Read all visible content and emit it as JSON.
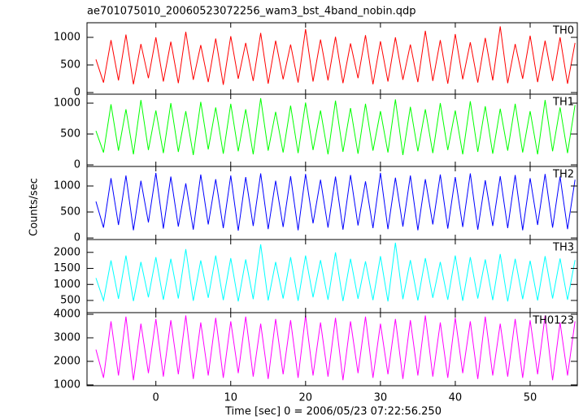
{
  "chart_data": {
    "type": "stacked-lines",
    "title": "ae701075010_20060523072256_wam3_bst_4band_nobin.qdp",
    "xlabel": "Time [sec] 0 = 2006/05/23 07:22:56.250",
    "ylabel": "Counts/sec",
    "x": [
      -8,
      -7,
      -6,
      -5,
      -4,
      -3,
      -2,
      -1,
      0,
      1,
      2,
      3,
      4,
      5,
      6,
      7,
      8,
      9,
      10,
      11,
      12,
      13,
      14,
      15,
      16,
      17,
      18,
      19,
      20,
      21,
      22,
      23,
      24,
      25,
      26,
      27,
      28,
      29,
      30,
      31,
      32,
      33,
      34,
      35,
      36,
      37,
      38,
      39,
      40,
      41,
      42,
      43,
      44,
      45,
      46,
      47,
      48,
      49,
      50,
      51,
      52,
      53,
      54,
      55,
      56
    ],
    "xlim": [
      -9.2,
      56.3
    ],
    "xticks": [
      0,
      10,
      20,
      30,
      40,
      50
    ],
    "panels": [
      {
        "name": "TH0",
        "color": "#ff0000",
        "ylim": [
          -30,
          1265
        ],
        "yticks": [
          0,
          500,
          1000
        ],
        "values": [
          600,
          180,
          950,
          220,
          1050,
          150,
          880,
          260,
          1000,
          200,
          920,
          170,
          1100,
          230,
          860,
          190,
          980,
          140,
          1020,
          250,
          900,
          210,
          1080,
          160,
          940,
          240,
          870,
          180,
          1150,
          200,
          960,
          220,
          1010,
          170,
          890,
          260,
          1040,
          150,
          930,
          200,
          1000,
          230,
          870,
          190,
          1120,
          210,
          950,
          160,
          1060,
          240,
          910,
          180,
          990,
          220,
          1200,
          170,
          880,
          250,
          1030,
          190,
          940,
          210,
          1000,
          160,
          900
        ]
      },
      {
        "name": "TH1",
        "color": "#00ff00",
        "ylim": [
          -26,
          1145
        ],
        "yticks": [
          0,
          500,
          1000
        ],
        "values": [
          550,
          200,
          980,
          230,
          900,
          170,
          1050,
          240,
          880,
          190,
          1000,
          210,
          870,
          160,
          1020,
          250,
          930,
          180,
          990,
          220,
          900,
          170,
          1080,
          230,
          860,
          200,
          960,
          190,
          1010,
          240,
          880,
          170,
          1040,
          210,
          920,
          180,
          990,
          230,
          870,
          200,
          1060,
          160,
          940,
          220,
          900,
          190,
          1000,
          240,
          880,
          170,
          1030,
          210,
          950,
          180,
          910,
          230,
          990,
          200,
          870,
          170,
          1050,
          220,
          930,
          190,
          970
        ]
      },
      {
        "name": "TH2",
        "color": "#0000ff",
        "ylim": [
          -30,
          1375
        ],
        "yticks": [
          0,
          500,
          1000
        ],
        "values": [
          700,
          200,
          1150,
          250,
          1200,
          150,
          1100,
          300,
          1250,
          180,
          1180,
          220,
          1050,
          160,
          1220,
          260,
          1130,
          190,
          1200,
          140,
          1170,
          230,
          1240,
          170,
          1100,
          210,
          1190,
          150,
          1230,
          280,
          1120,
          200,
          1180,
          160,
          1210,
          240,
          1090,
          190,
          1250,
          170,
          1160,
          220,
          1200,
          150,
          1130,
          260,
          1220,
          180,
          1170,
          210,
          1240,
          160,
          1110,
          230,
          1190,
          190,
          1210,
          150,
          1150,
          250,
          1230,
          200,
          1180,
          170,
          1120
        ]
      },
      {
        "name": "TH3",
        "color": "#00ffff",
        "ylim": [
          120,
          2400
        ],
        "yticks": [
          500,
          1000,
          1500,
          2000
        ],
        "values": [
          1200,
          500,
          1750,
          550,
          1900,
          480,
          1700,
          600,
          1850,
          520,
          1800,
          560,
          2100,
          490,
          1750,
          580,
          1900,
          510,
          1820,
          470,
          1780,
          540,
          2250,
          500,
          1700,
          560,
          1850,
          490,
          1900,
          600,
          1760,
          520,
          2000,
          480,
          1800,
          550,
          1720,
          510,
          1880,
          470,
          2300,
          540,
          1760,
          500,
          1820,
          580,
          1700,
          520,
          1900,
          490,
          1850,
          560,
          1780,
          510,
          1950,
          470,
          1800,
          540,
          1740,
          500,
          1880,
          560,
          1810,
          520,
          1760
        ]
      },
      {
        "name": "TH0123",
        "color": "#ff00ff",
        "ylim": [
          965,
          4070
        ],
        "yticks": [
          1000,
          2000,
          3000,
          4000
        ],
        "values": [
          2500,
          1300,
          3700,
          1400,
          3900,
          1200,
          3600,
          1500,
          3800,
          1350,
          3750,
          1450,
          3950,
          1250,
          3650,
          1400,
          3850,
          1300,
          3700,
          1500,
          3900,
          1350,
          3600,
          1250,
          3800,
          1450,
          3750,
          1300,
          3950,
          1400,
          3650,
          1350,
          3850,
          1200,
          3700,
          1500,
          3900,
          1300,
          3600,
          1450,
          3800,
          1250,
          3750,
          1400,
          3950,
          1350,
          3650,
          1300,
          3850,
          1500,
          3700,
          1250,
          3900,
          1400,
          3600,
          1350,
          3800,
          1300,
          3750,
          1450,
          3950,
          1200,
          3650,
          1400,
          3700
        ]
      }
    ]
  }
}
